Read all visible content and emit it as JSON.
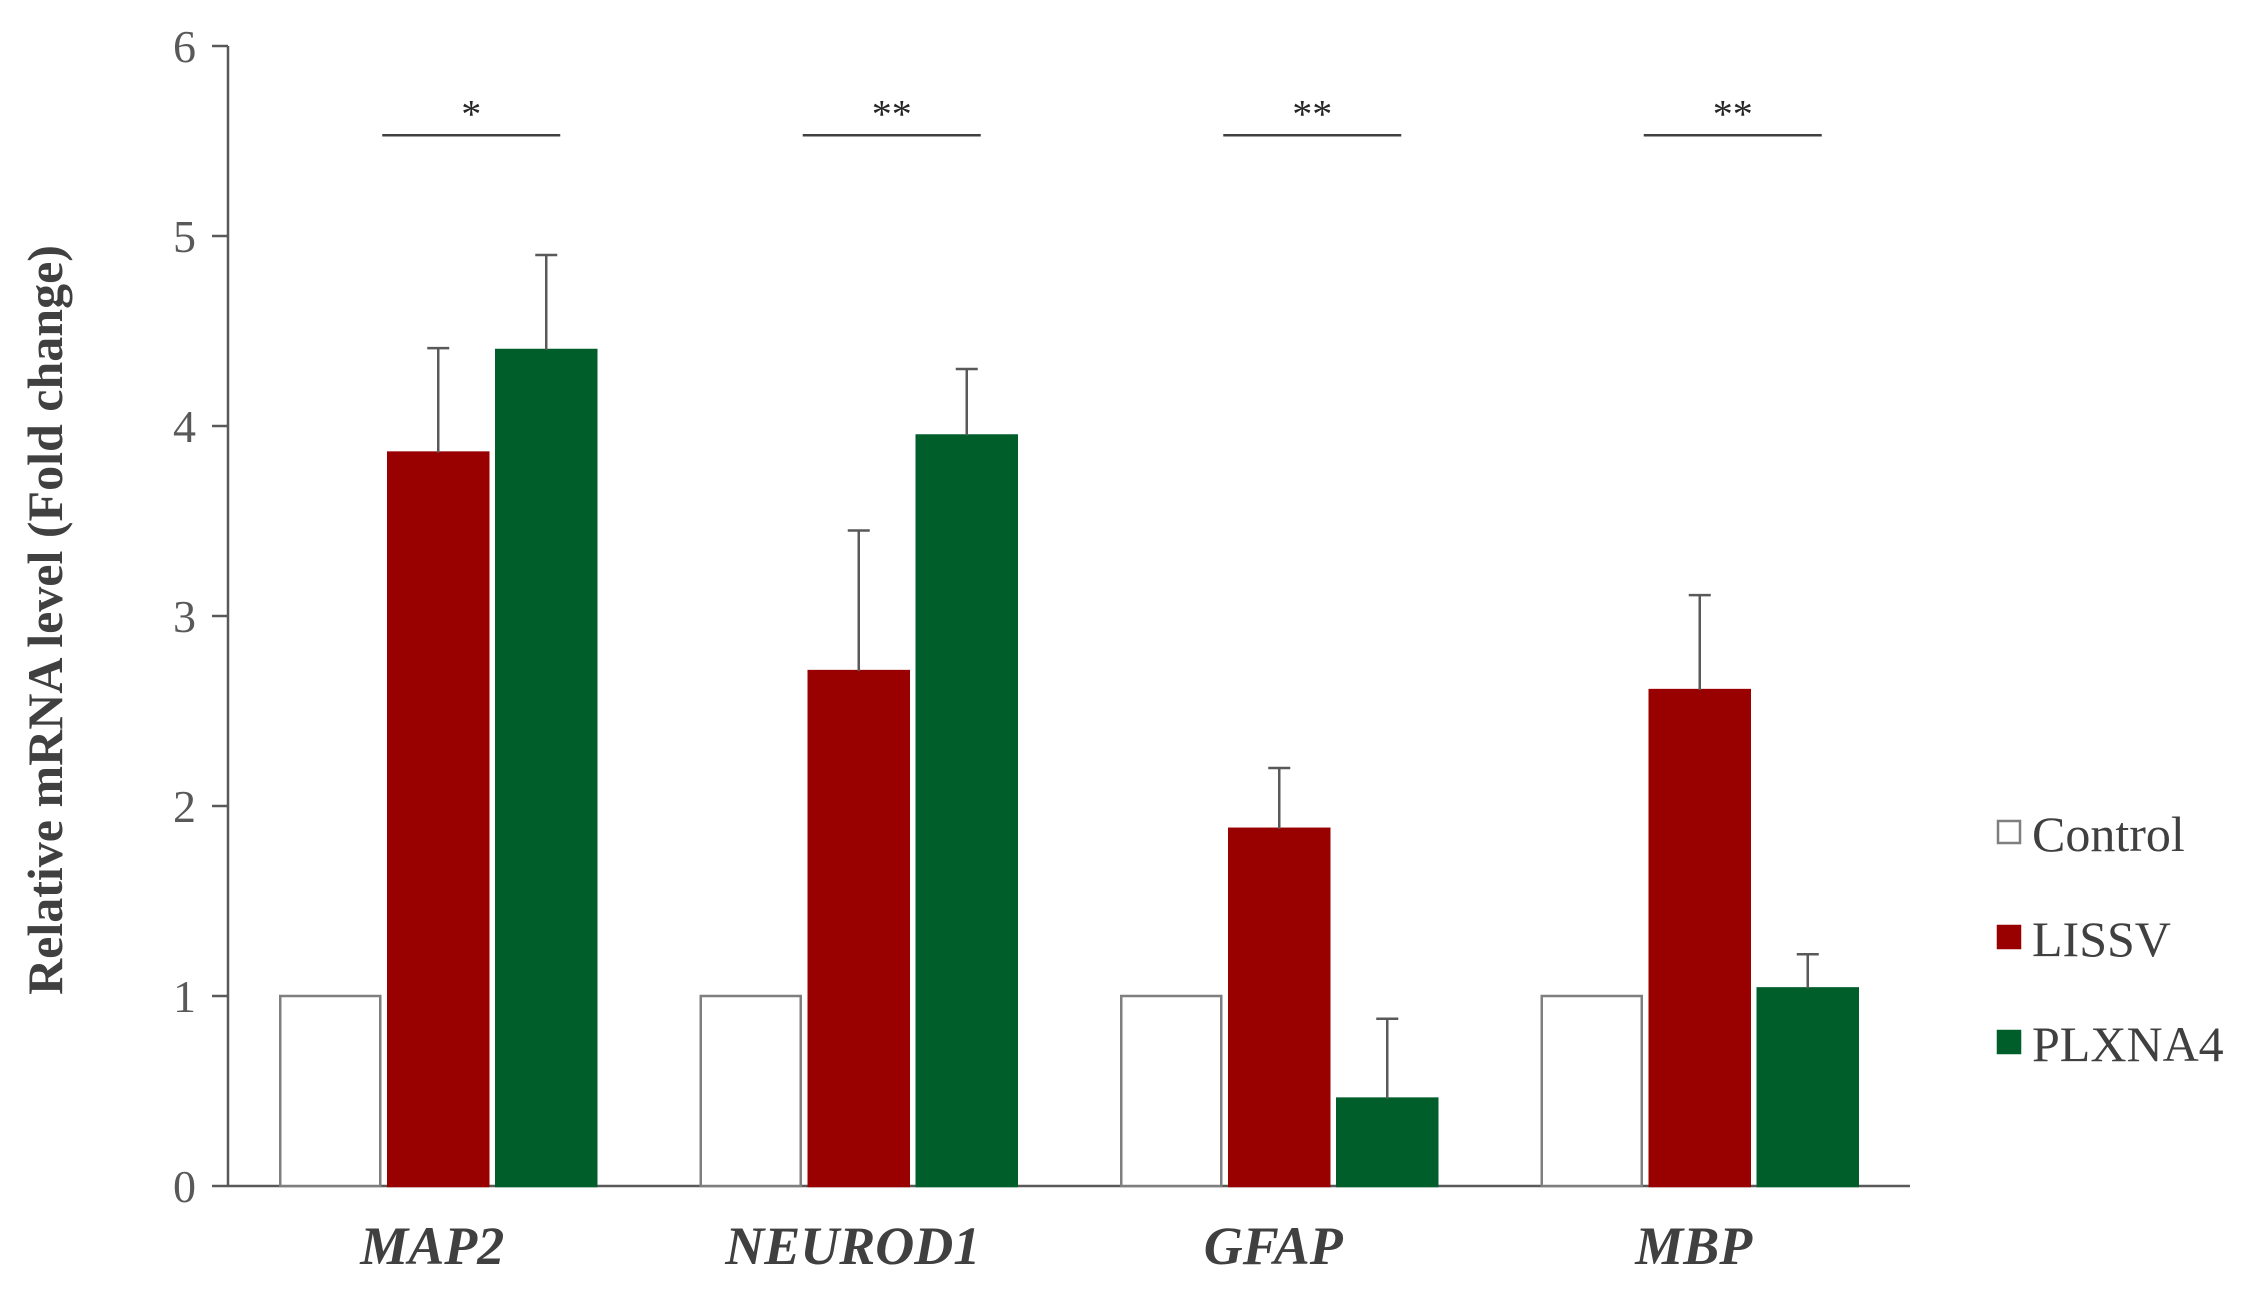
{
  "chart_data": {
    "type": "bar",
    "title": "",
    "xlabel": "",
    "ylabel": "Relative mRNA level (Fold change)",
    "ylim": [
      0,
      6
    ],
    "yticks": [
      "0",
      "1",
      "2",
      "3",
      "4",
      "5",
      "6"
    ],
    "grid": false,
    "legend_position": "right",
    "categories": [
      "MAP2",
      "NEUROD1",
      "GFAP",
      "MBP"
    ],
    "series": [
      {
        "name": "Control",
        "color": "#ffffff",
        "stroke": "#7f7f7f",
        "values": [
          1.0,
          1.0,
          1.0,
          1.0
        ],
        "errors": [
          0,
          0,
          0,
          0
        ]
      },
      {
        "name": "LISSV",
        "color": "#990000",
        "stroke": "#990000",
        "values": [
          3.86,
          2.71,
          1.88,
          2.61
        ],
        "errors": [
          0.55,
          0.74,
          0.32,
          0.5
        ]
      },
      {
        "name": "PLXNA4",
        "color": "#005e2b",
        "stroke": "#005e2b",
        "values": [
          4.4,
          3.95,
          0.46,
          1.04
        ],
        "errors": [
          0.5,
          0.35,
          0.42,
          0.18
        ]
      }
    ],
    "significance": [
      "*",
      "**",
      "**",
      "**"
    ],
    "significance_level": 5.53
  }
}
